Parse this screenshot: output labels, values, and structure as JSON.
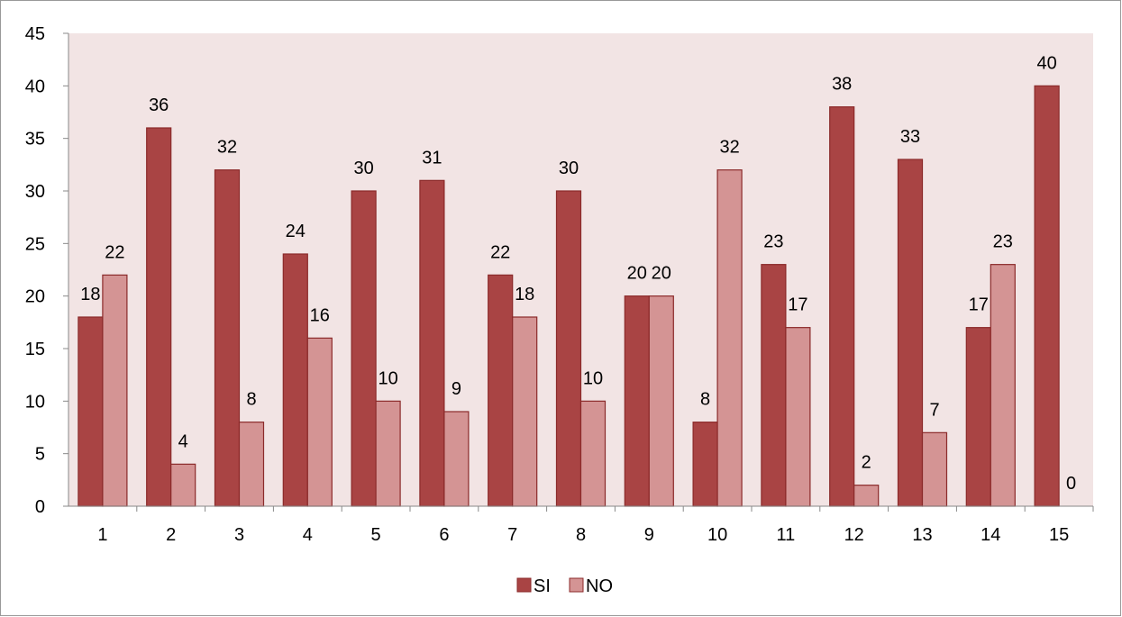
{
  "chart_data": {
    "type": "bar",
    "title": "",
    "xlabel": "",
    "ylabel": "",
    "categories": [
      "1",
      "2",
      "3",
      "4",
      "5",
      "6",
      "7",
      "8",
      "9",
      "10",
      "11",
      "12",
      "13",
      "14",
      "15"
    ],
    "series": [
      {
        "name": "SI",
        "color": "#a94444",
        "values": [
          18,
          36,
          32,
          24,
          30,
          31,
          22,
          30,
          20,
          8,
          23,
          38,
          33,
          17,
          40
        ]
      },
      {
        "name": "NO",
        "color": "#d49494",
        "values": [
          22,
          4,
          8,
          16,
          10,
          9,
          18,
          10,
          20,
          32,
          17,
          2,
          7,
          23,
          0
        ]
      }
    ],
    "ylim": [
      0,
      45
    ],
    "yticks": [
      0,
      5,
      10,
      15,
      20,
      25,
      30,
      35,
      40,
      45
    ],
    "grid": false,
    "legend": "bottom",
    "colors": {
      "plot_background": "#f2e4e4",
      "bar_border": "#8b2a2a",
      "axis": "#888888",
      "frame": "#999999"
    }
  }
}
